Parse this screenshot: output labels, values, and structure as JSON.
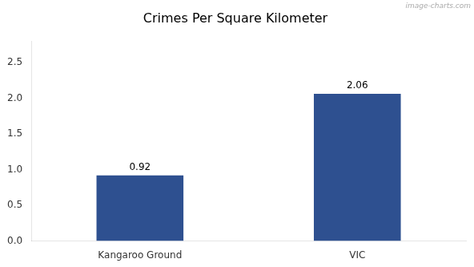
{
  "chart_data": {
    "type": "bar",
    "title": "Crimes Per Square Kilometer",
    "categories": [
      "Kangaroo Ground",
      "VIC"
    ],
    "values": [
      0.92,
      2.06
    ],
    "color": "#2e5090",
    "ylim": [
      0,
      2.8
    ],
    "yticks": [
      {
        "value": 0,
        "label": "0.0"
      },
      0.5,
      {
        "value": 1.0,
        "label": "1.0"
      },
      1.5,
      {
        "value": 2.0,
        "label": "2.0"
      },
      2.5
    ],
    "grid": false,
    "data_labels": true,
    "annotations": [
      "image-charts.com"
    ]
  }
}
